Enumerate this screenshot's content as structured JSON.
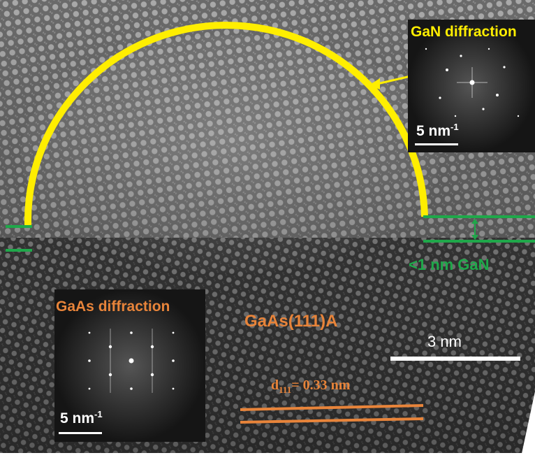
{
  "figure": {
    "top_inset_label": "GaN diffraction",
    "top_inset_scale": "5 nm",
    "top_inset_scale_exp": "-1",
    "layer_label": "<1 nm GaN",
    "bottom_inset_label": "GaAs diffraction",
    "bottom_inset_scale": "5 nm",
    "bottom_inset_scale_exp": "-1",
    "substrate_label": "GaAs(111)A",
    "scale_bar_label": "3 nm",
    "d_spacing_symbol": "d",
    "d_spacing_sub": "111",
    "d_spacing_value": "= 0.33 nm"
  },
  "colors": {
    "yellow": "#ffee00",
    "green": "#1fa84a",
    "orange": "#e8843a",
    "white": "#ffffff"
  }
}
